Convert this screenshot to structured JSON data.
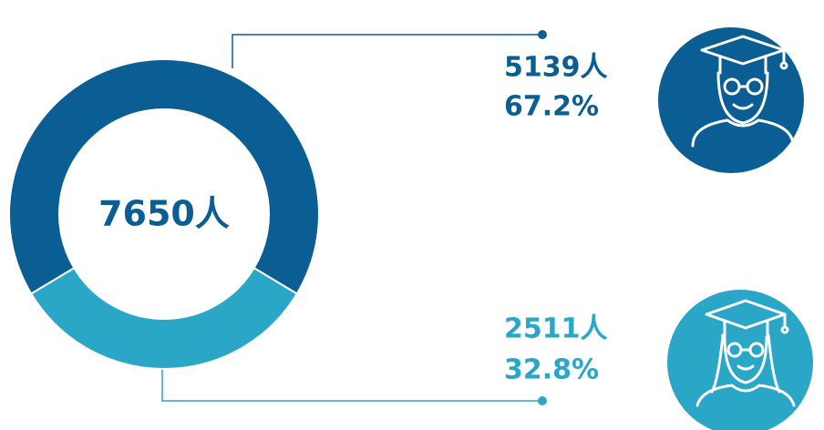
{
  "chart_data": {
    "type": "donut",
    "total": 7650,
    "total_label": "7650人",
    "categories": [
      null,
      null
    ],
    "values": [
      5139,
      2511
    ],
    "value_labels": [
      "5139人",
      "2511人"
    ],
    "shares": [
      67.2,
      32.8
    ],
    "share_labels": [
      "67.2%",
      "32.8%"
    ],
    "colors": [
      "#0b5e94",
      "#2aa6c6"
    ]
  }
}
